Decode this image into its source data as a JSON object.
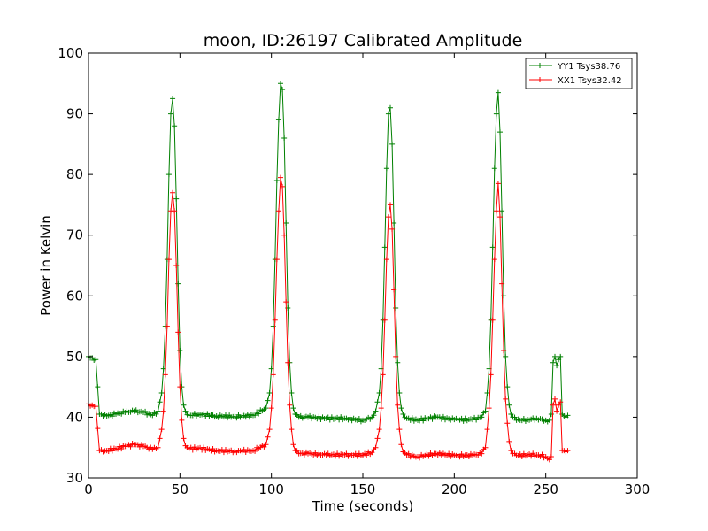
{
  "chart_data": {
    "type": "line",
    "title": "moon, ID:26197 Calibrated Amplitude",
    "xlabel": "Time (seconds)",
    "ylabel": "Power in Kelvin",
    "xlim": [
      0,
      300
    ],
    "ylim": [
      30,
      100
    ],
    "xticks": [
      0,
      50,
      100,
      150,
      200,
      250,
      300
    ],
    "yticks": [
      30,
      40,
      50,
      60,
      70,
      80,
      90,
      100
    ],
    "grid": false,
    "legend_position": "top-right",
    "marker": "+",
    "series": [
      {
        "name": "YY1 Tsys38.76",
        "color": "#008000",
        "x": [
          0,
          2,
          4,
          6,
          8,
          10,
          15,
          20,
          25,
          30,
          35,
          38,
          40,
          41,
          42,
          43,
          44,
          45,
          46,
          47,
          48,
          49,
          50,
          51,
          52,
          53,
          55,
          60,
          70,
          80,
          90,
          97,
          99,
          100,
          101,
          102,
          103,
          104,
          105,
          106,
          107,
          108,
          109,
          110,
          111,
          112,
          113,
          115,
          120,
          130,
          140,
          150,
          155,
          157,
          159,
          160,
          161,
          162,
          163,
          164,
          165,
          166,
          167,
          168,
          169,
          170,
          171,
          172,
          174,
          180,
          190,
          200,
          210,
          215,
          217,
          218,
          219,
          220,
          221,
          222,
          223,
          224,
          225,
          226,
          227,
          228,
          229,
          230,
          231,
          232,
          234,
          240,
          245,
          250,
          252,
          253,
          254,
          255,
          256,
          257,
          258,
          259,
          260,
          262
        ],
        "values": [
          50.0,
          49.8,
          49.5,
          40.5,
          40.2,
          40.2,
          40.5,
          40.8,
          41.0,
          40.8,
          40.3,
          41.0,
          44.0,
          48.0,
          55.0,
          66.0,
          80.0,
          90.0,
          92.5,
          88.0,
          76.0,
          62.0,
          51.0,
          45.0,
          42.0,
          41.0,
          40.3,
          40.5,
          40.2,
          40.1,
          40.3,
          41.5,
          44.0,
          48.0,
          55.0,
          66.0,
          79.0,
          89.0,
          95.0,
          94.0,
          86.0,
          72.0,
          58.0,
          49.0,
          44.0,
          41.5,
          40.5,
          40.0,
          40.0,
          39.8,
          39.8,
          39.5,
          40.0,
          41.0,
          44.0,
          48.0,
          56.0,
          68.0,
          81.0,
          90.0,
          91.0,
          85.0,
          72.0,
          58.0,
          49.0,
          44.0,
          41.5,
          40.5,
          39.8,
          39.5,
          40.0,
          39.6,
          39.6,
          40.0,
          41.0,
          44.0,
          48.0,
          56.0,
          68.0,
          81.0,
          90.0,
          93.5,
          87.0,
          74.0,
          60.0,
          50.0,
          45.0,
          42.0,
          40.5,
          40.0,
          39.5,
          39.6,
          39.8,
          39.5,
          39.5,
          40.5,
          49.0,
          50.0,
          48.5,
          49.5,
          50.0,
          40.5,
          40.2,
          40.3
        ]
      },
      {
        "name": "XX1 Tsys32.42",
        "color": "#ff0000",
        "x": [
          0,
          2,
          4,
          6,
          8,
          10,
          15,
          20,
          25,
          30,
          35,
          38,
          40,
          41,
          42,
          43,
          44,
          45,
          46,
          47,
          48,
          49,
          50,
          51,
          52,
          53,
          55,
          60,
          70,
          80,
          90,
          97,
          99,
          100,
          101,
          102,
          103,
          104,
          105,
          106,
          107,
          108,
          109,
          110,
          111,
          112,
          113,
          115,
          120,
          130,
          140,
          150,
          155,
          157,
          159,
          160,
          161,
          162,
          163,
          164,
          165,
          166,
          167,
          168,
          169,
          170,
          171,
          172,
          174,
          180,
          190,
          200,
          210,
          215,
          217,
          218,
          219,
          220,
          221,
          222,
          223,
          224,
          225,
          226,
          227,
          228,
          229,
          230,
          231,
          232,
          234,
          240,
          245,
          250,
          252,
          253,
          254,
          255,
          256,
          257,
          258,
          259,
          260,
          262
        ],
        "values": [
          42.2,
          42.0,
          41.8,
          34.5,
          34.3,
          34.5,
          34.8,
          35.2,
          35.5,
          35.2,
          34.7,
          35.0,
          38.0,
          41.0,
          47.0,
          55.0,
          66.0,
          74.0,
          77.0,
          74.0,
          65.0,
          54.0,
          45.0,
          39.5,
          36.5,
          35.3,
          34.8,
          34.9,
          34.5,
          34.4,
          34.5,
          35.5,
          38.0,
          41.5,
          47.0,
          56.0,
          66.0,
          74.0,
          79.5,
          78.0,
          70.0,
          59.0,
          49.0,
          42.0,
          38.0,
          35.5,
          34.5,
          34.0,
          34.0,
          33.8,
          33.8,
          33.8,
          34.2,
          35.0,
          38.0,
          41.5,
          47.0,
          56.0,
          66.0,
          73.0,
          75.0,
          71.0,
          61.0,
          50.0,
          42.0,
          38.0,
          35.5,
          34.3,
          33.8,
          33.5,
          34.0,
          33.7,
          33.7,
          34.0,
          35.0,
          38.0,
          41.5,
          47.0,
          56.0,
          66.0,
          74.0,
          78.5,
          73.0,
          62.0,
          51.0,
          43.0,
          39.0,
          36.0,
          34.5,
          34.0,
          33.7,
          33.8,
          33.8,
          33.5,
          33.0,
          33.5,
          42.0,
          43.0,
          41.0,
          42.0,
          42.5,
          34.5,
          34.5,
          34.5
        ]
      }
    ]
  }
}
